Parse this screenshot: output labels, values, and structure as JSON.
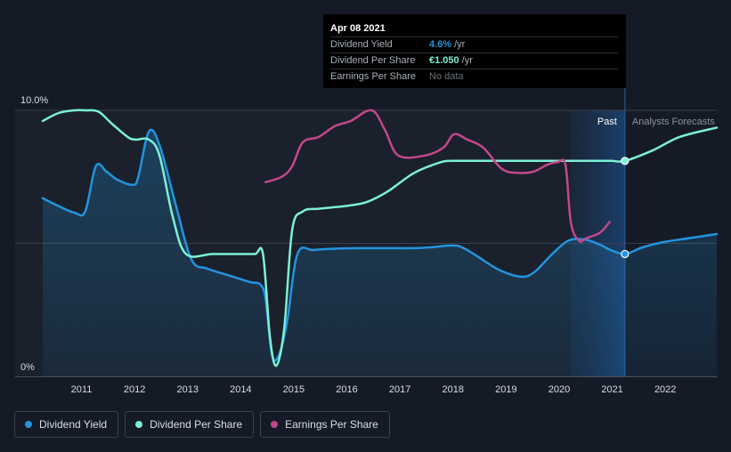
{
  "chart_data": {
    "type": "line",
    "title": "",
    "x_ticks": [
      "2011",
      "2012",
      "2013",
      "2014",
      "2015",
      "2016",
      "2017",
      "2018",
      "2019",
      "2020",
      "2021",
      "2022"
    ],
    "y_ticks": [
      "10.0%",
      "0%"
    ],
    "ylim": [
      0,
      10
    ],
    "xlim": [
      2010.3,
      2023.0
    ],
    "forecast_from": 2021.27,
    "past_band_start": 2020.25,
    "past_label": "Past",
    "forecast_label": "Analysts Forecasts",
    "series": [
      {
        "name": "Dividend Yield",
        "color": "#2394df",
        "fill": true,
        "x": [
          2010.3,
          2010.6,
          2010.9,
          2011.1,
          2011.3,
          2011.5,
          2011.7,
          2012.0,
          2012.1,
          2012.3,
          2012.5,
          2012.8,
          2013.1,
          2013.4,
          2013.8,
          2014.2,
          2014.4,
          2014.5,
          2014.62,
          2014.75,
          2014.9,
          2015.1,
          2015.4,
          2015.8,
          2016.3,
          2016.8,
          2017.3,
          2017.6,
          2018.0,
          2018.2,
          2018.5,
          2018.9,
          2019.3,
          2019.55,
          2019.9,
          2020.2,
          2020.5,
          2020.8,
          2021.0,
          2021.27,
          2021.6,
          2022.0,
          2022.5,
          2023.0
        ],
        "y": [
          6.7,
          6.4,
          6.15,
          6.2,
          7.9,
          7.7,
          7.4,
          7.2,
          7.5,
          9.2,
          8.7,
          6.5,
          4.4,
          4.05,
          3.8,
          3.55,
          3.45,
          2.9,
          0.8,
          0.8,
          2.0,
          4.6,
          4.75,
          4.8,
          4.82,
          4.82,
          4.82,
          4.85,
          4.92,
          4.85,
          4.5,
          4.0,
          3.75,
          3.9,
          4.6,
          5.1,
          5.15,
          4.95,
          4.75,
          4.6,
          4.85,
          5.05,
          5.2,
          5.35
        ]
      },
      {
        "name": "Dividend Per Share",
        "color": "#7cf0d6",
        "fill": false,
        "x": [
          2010.3,
          2010.6,
          2010.9,
          2011.1,
          2011.35,
          2011.6,
          2011.9,
          2012.05,
          2012.3,
          2012.5,
          2012.75,
          2013.0,
          2013.5,
          2014.0,
          2014.3,
          2014.45,
          2014.58,
          2014.7,
          2014.85,
          2015.0,
          2015.2,
          2015.5,
          2016.0,
          2016.4,
          2016.8,
          2017.3,
          2017.8,
          2018.0,
          2018.5,
          2019.0,
          2019.5,
          2020.0,
          2020.5,
          2021.0,
          2021.27,
          2021.8,
          2022.3,
          2023.0
        ],
        "y": [
          9.6,
          9.9,
          10.0,
          10.0,
          9.95,
          9.5,
          9.0,
          8.9,
          8.9,
          8.3,
          6.0,
          4.6,
          4.6,
          4.6,
          4.6,
          4.6,
          1.5,
          0.4,
          1.8,
          5.5,
          6.2,
          6.3,
          6.4,
          6.55,
          6.95,
          7.65,
          8.05,
          8.1,
          8.1,
          8.1,
          8.1,
          8.1,
          8.1,
          8.1,
          8.1,
          8.5,
          9.0,
          9.35
        ]
      },
      {
        "name": "Earnings Per Share",
        "color": "#c4468b",
        "fill": false,
        "x": [
          2014.5,
          2014.8,
          2015.0,
          2015.2,
          2015.5,
          2015.8,
          2016.1,
          2016.5,
          2016.75,
          2017.0,
          2017.5,
          2017.85,
          2018.05,
          2018.3,
          2018.6,
          2018.95,
          2019.25,
          2019.55,
          2019.8,
          2020.0,
          2020.15,
          2020.25,
          2020.4,
          2020.55,
          2020.8,
          2020.98
        ],
        "y": [
          7.3,
          7.5,
          7.9,
          8.8,
          9.0,
          9.4,
          9.6,
          10.0,
          9.25,
          8.3,
          8.3,
          8.6,
          9.1,
          8.9,
          8.6,
          7.8,
          7.65,
          7.7,
          7.95,
          8.05,
          7.95,
          5.8,
          5.1,
          5.2,
          5.4,
          5.8
        ]
      }
    ],
    "highlight_points": [
      {
        "series": "Dividend Yield",
        "x": 2021.27,
        "y": 4.6
      },
      {
        "series": "Dividend Per Share",
        "x": 2021.27,
        "y": 8.1
      }
    ]
  },
  "tooltip": {
    "date": "Apr 08 2021",
    "rows": [
      {
        "label": "Dividend Yield",
        "value": "4.6%",
        "unit": "/yr",
        "color": "#2394df"
      },
      {
        "label": "Dividend Per Share",
        "value": "€1.050",
        "unit": "/yr",
        "color": "#7cf0d6"
      },
      {
        "label": "Earnings Per Share",
        "nodata": "No data"
      }
    ]
  },
  "legend": [
    {
      "label": "Dividend Yield",
      "color": "#2394df"
    },
    {
      "label": "Dividend Per Share",
      "color": "#7cf0d6"
    },
    {
      "label": "Earnings Per Share",
      "color": "#c4468b"
    }
  ]
}
